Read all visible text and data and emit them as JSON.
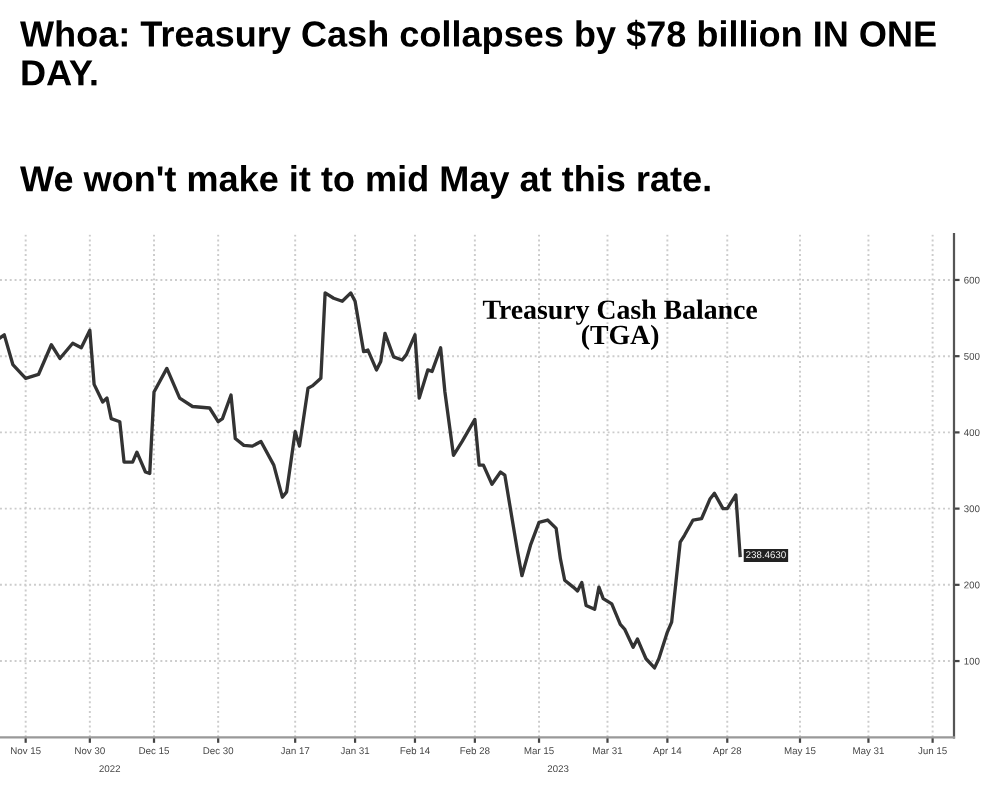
{
  "chart_data": {
    "type": "line",
    "title": "Whoa: Treasury Cash collapses by $78 billion IN ONE DAY.",
    "subtitle": "We won't make it to mid May at this rate.",
    "annotations": [
      "Treasury Cash Balance\n(TGA)",
      "2022",
      "2023"
    ],
    "x": [
      "2022-11-09",
      "2022-11-10",
      "2022-11-12",
      "2022-11-15",
      "2022-11-18",
      "2022-11-21",
      "2022-11-23",
      "2022-11-26",
      "2022-11-28",
      "2022-11-30",
      "2022-12-01",
      "2022-12-03",
      "2022-12-04",
      "2022-12-05",
      "2022-12-07",
      "2022-12-08",
      "2022-12-10",
      "2022-12-11",
      "2022-12-13",
      "2022-12-14",
      "2022-12-15",
      "2022-12-18",
      "2022-12-21",
      "2022-12-24",
      "2022-12-28",
      "2022-12-30",
      "2022-12-31",
      "2023-01-02",
      "2023-01-03",
      "2023-01-05",
      "2023-01-07",
      "2023-01-09",
      "2023-01-12",
      "2023-01-14",
      "2023-01-15",
      "2023-01-17",
      "2023-01-18",
      "2023-01-20",
      "2023-01-21",
      "2023-01-23",
      "2023-01-24",
      "2023-01-26",
      "2023-01-28",
      "2023-01-30",
      "2023-01-31",
      "2023-02-02",
      "2023-02-03",
      "2023-02-05",
      "2023-02-06",
      "2023-02-07",
      "2023-02-09",
      "2023-02-11",
      "2023-02-12",
      "2023-02-14",
      "2023-02-15",
      "2023-02-17",
      "2023-02-18",
      "2023-02-20",
      "2023-02-21",
      "2023-02-23",
      "2023-02-25",
      "2023-02-28",
      "2023-03-01",
      "2023-03-02",
      "2023-03-04",
      "2023-03-06",
      "2023-03-07",
      "2023-03-10",
      "2023-03-11",
      "2023-03-13",
      "2023-03-15",
      "2023-03-17",
      "2023-03-19",
      "2023-03-20",
      "2023-03-21",
      "2023-03-23",
      "2023-03-24",
      "2023-03-25",
      "2023-03-26",
      "2023-03-28",
      "2023-03-29",
      "2023-03-30",
      "2023-04-01",
      "2023-04-03",
      "2023-04-04",
      "2023-04-06",
      "2023-04-07",
      "2023-04-08",
      "2023-04-09",
      "2023-04-11",
      "2023-04-12",
      "2023-04-14",
      "2023-04-15",
      "2023-04-17",
      "2023-04-18",
      "2023-04-20",
      "2023-04-22",
      "2023-04-24",
      "2023-04-25",
      "2023-04-27",
      "2023-04-28",
      "2023-04-30",
      "2023-05-01"
    ],
    "series": [
      {
        "color": "#333333",
        "values": [
          524,
          528,
          489,
          471,
          476,
          515,
          497,
          517,
          511,
          534,
          463,
          440,
          445,
          418,
          414,
          361,
          361,
          374,
          348,
          346,
          453,
          484,
          445,
          434,
          432,
          414,
          418,
          449,
          392,
          383,
          382,
          388,
          357,
          315,
          322,
          401,
          382,
          458,
          461,
          471,
          583,
          576,
          572,
          583,
          572,
          506,
          508,
          482,
          493,
          530,
          499,
          495,
          502,
          528,
          445,
          482,
          480,
          511,
          453,
          370,
          388,
          417,
          357,
          357,
          332,
          348,
          344,
          243,
          212,
          252,
          282,
          285,
          274,
          234,
          206,
          197,
          192,
          203,
          173,
          168,
          197,
          182,
          175,
          148,
          142,
          118,
          129,
          116,
          103,
          91,
          103,
          138,
          151,
          256,
          265,
          285,
          287,
          313,
          320,
          300,
          300,
          318,
          238.463
        ],
        "value_labels": [
          null,
          null,
          null,
          null,
          null,
          null,
          null,
          null,
          null,
          null,
          null,
          null,
          null,
          null,
          null,
          null,
          null,
          null,
          null,
          null,
          null,
          null,
          null,
          null,
          null,
          null,
          null,
          null,
          null,
          null,
          null,
          null,
          null,
          null,
          null,
          null,
          null,
          null,
          null,
          null,
          null,
          null,
          null,
          null,
          null,
          null,
          null,
          null,
          null,
          null,
          null,
          null,
          null,
          null,
          null,
          null,
          null,
          null,
          null,
          null,
          null,
          null,
          null,
          null,
          null,
          null,
          null,
          null,
          null,
          null,
          null,
          null,
          null,
          null,
          null,
          null,
          null,
          null,
          null,
          null,
          null,
          null,
          null,
          null,
          null,
          null,
          null,
          null,
          null,
          null,
          null,
          null,
          null,
          null,
          null,
          null,
          null,
          null,
          null,
          null,
          null,
          null,
          "238.4630"
        ]
      }
    ],
    "xlim": [
      "2022-11-09",
      "2023-06-20"
    ],
    "xticks": [
      {
        "value": "2022-11-15",
        "label": "Nov 15"
      },
      {
        "value": "2022-11-30",
        "label": "Nov 30"
      },
      {
        "value": "2022-12-15",
        "label": "Dec 15"
      },
      {
        "value": "2022-12-30",
        "label": "Dec 30"
      },
      {
        "value": "2023-01-17",
        "label": "Jan 17"
      },
      {
        "value": "2023-01-31",
        "label": "Jan 31"
      },
      {
        "value": "2023-02-14",
        "label": "Feb 14"
      },
      {
        "value": "2023-02-28",
        "label": "Feb 28"
      },
      {
        "value": "2023-03-15",
        "label": "Mar 15"
      },
      {
        "value": "2023-03-31",
        "label": "Mar 31"
      },
      {
        "value": "2023-04-14",
        "label": "Apr 14"
      },
      {
        "value": "2023-04-28",
        "label": "Apr 28"
      },
      {
        "value": "2023-05-15",
        "label": "May 15"
      },
      {
        "value": "2023-05-31",
        "label": "May 31"
      },
      {
        "value": "2023-06-15",
        "label": "Jun 15"
      }
    ],
    "ylim": [
      0,
      660
    ],
    "yticks": [
      100,
      200,
      300,
      400,
      500,
      600
    ],
    "grid": true,
    "line_style": "solid"
  }
}
